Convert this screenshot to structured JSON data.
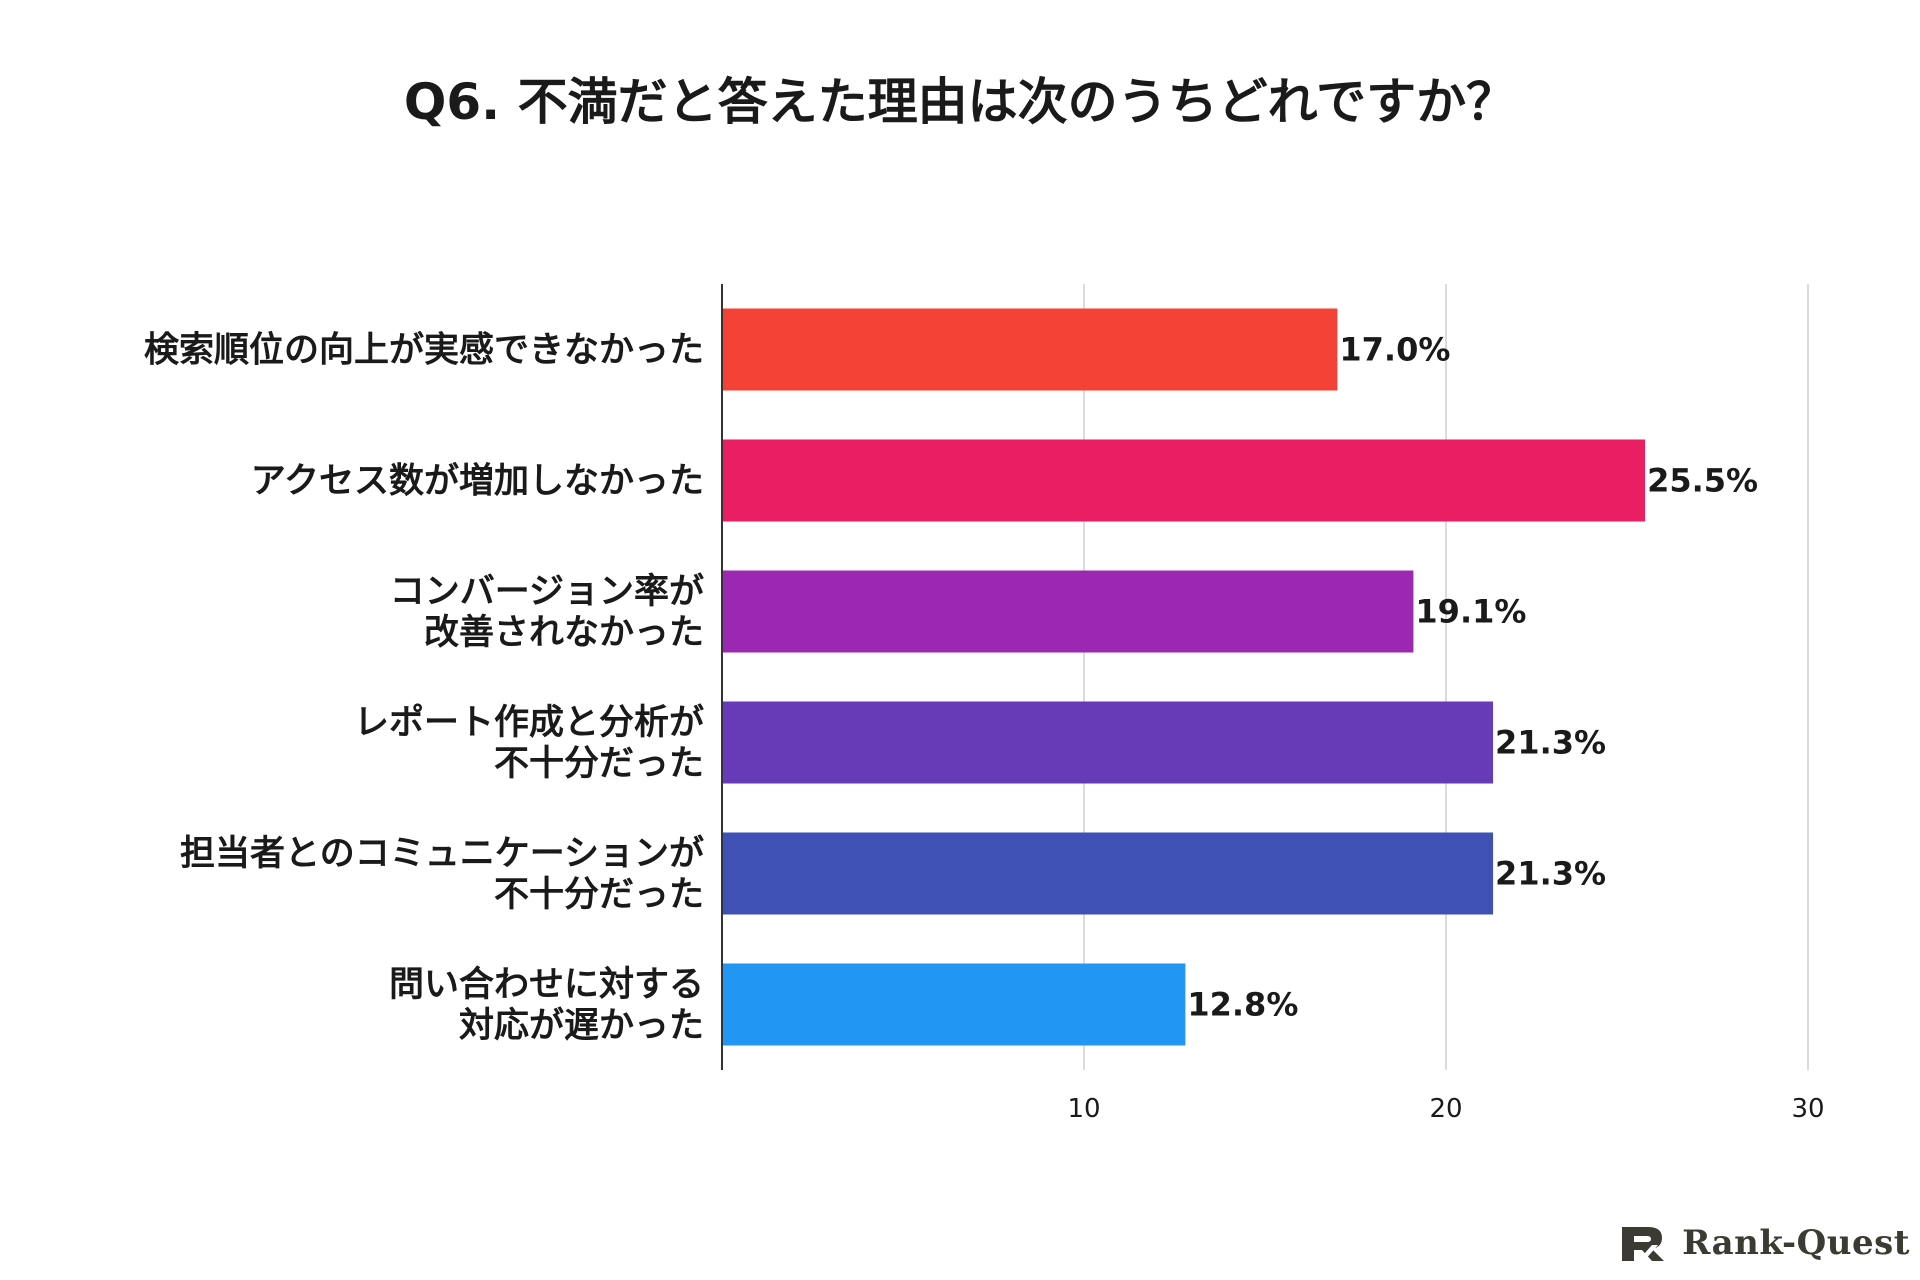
{
  "title": "Q6. 不満だと答えた理由は次のうちどれですか？",
  "chart_data": {
    "type": "bar",
    "orientation": "horizontal",
    "categories": [
      [
        "検索順位の向上が実感できなかった"
      ],
      [
        "アクセス数が増加しなかった"
      ],
      [
        "コンバージョン率が",
        "改善されなかった"
      ],
      [
        "レポート作成と分析が",
        "不十分だった"
      ],
      [
        "担当者とのコミュニケーションが",
        "不十分だった"
      ],
      [
        "問い合わせに対する",
        "対応が遅かった"
      ]
    ],
    "values": [
      17.0,
      25.5,
      19.1,
      21.3,
      21.3,
      12.8
    ],
    "value_labels": [
      "17.0%",
      "25.5%",
      "19.1%",
      "21.3%",
      "21.3%",
      "12.8%"
    ],
    "colors": [
      "#f44336",
      "#e91e63",
      "#9c27b0",
      "#673ab7",
      "#3f51b5",
      "#2196f3"
    ],
    "xlim": [
      0,
      30
    ],
    "xticks": [
      10,
      20,
      30
    ],
    "xtick_labels": [
      "10",
      "20",
      "30"
    ],
    "grid": true
  },
  "brand": {
    "name": "Rank-Quest",
    "icon": "rank-quest-logo-icon"
  }
}
